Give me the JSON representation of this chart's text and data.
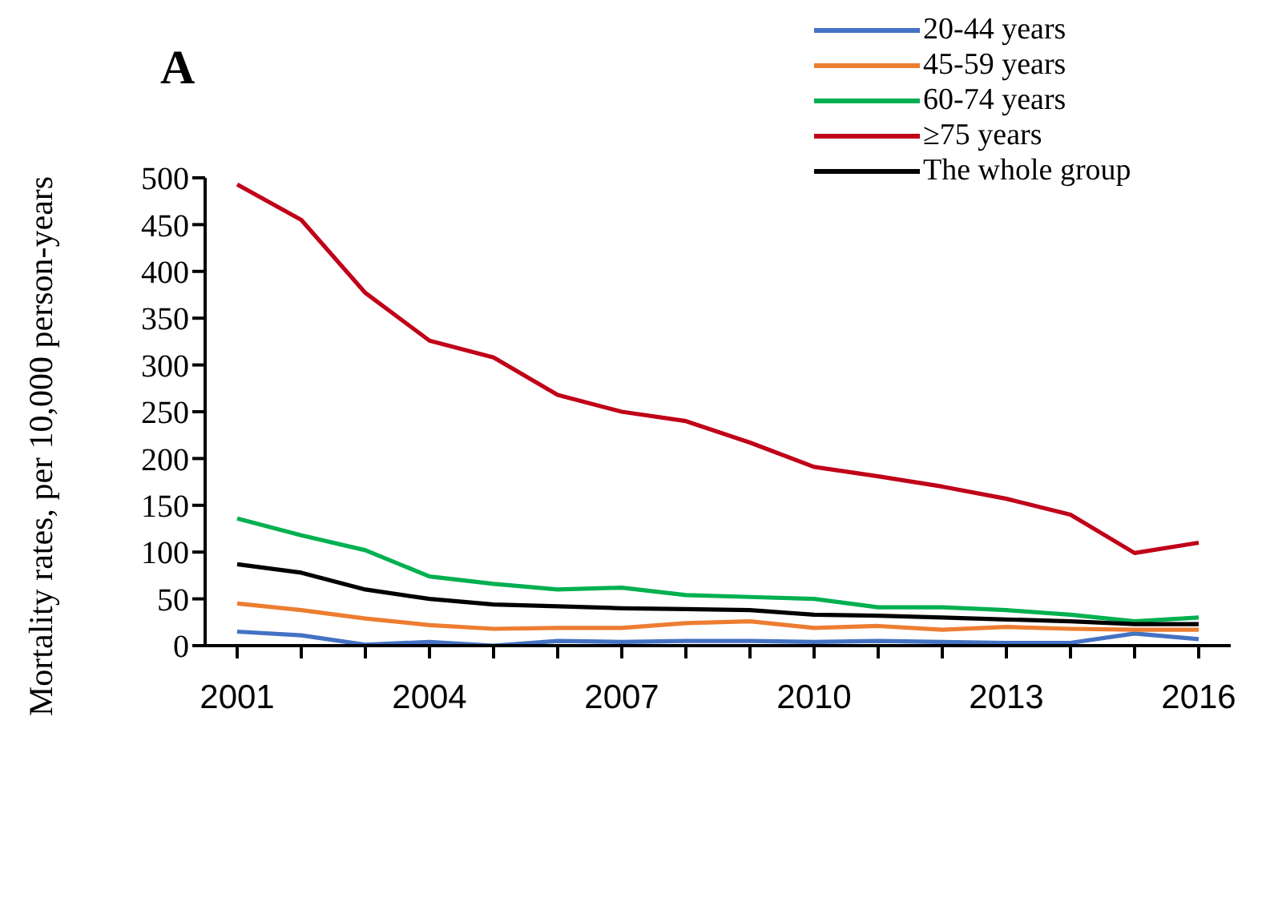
{
  "chart_data": {
    "type": "line",
    "title": "A",
    "ylabel": "Mortality rates, per 10,000 person-years",
    "x": [
      2001,
      2002,
      2003,
      2004,
      2005,
      2006,
      2007,
      2008,
      2009,
      2010,
      2011,
      2012,
      2013,
      2014,
      2015,
      2016
    ],
    "xlim": [
      2000.5,
      2016.5
    ],
    "xticks": [
      2001,
      {
        "value": 2002,
        "label": null
      },
      {
        "value": 2003,
        "label": null
      },
      2004,
      {
        "value": 2005,
        "label": null
      },
      {
        "value": 2006,
        "label": null
      },
      2007,
      {
        "value": 2008,
        "label": null
      },
      {
        "value": 2009,
        "label": null
      },
      2010,
      {
        "value": 2011,
        "label": null
      },
      {
        "value": 2012,
        "label": null
      },
      2013,
      {
        "value": 2014,
        "label": null
      },
      {
        "value": 2015,
        "label": null
      },
      2016
    ],
    "ylim": [
      0,
      500
    ],
    "yticks": [
      0,
      50,
      100,
      150,
      200,
      250,
      300,
      350,
      400,
      450,
      500
    ],
    "legend": "top right",
    "grid": false,
    "series": [
      {
        "name": "20-44 years",
        "color": "#4472c4",
        "values": [
          15,
          11,
          1,
          4,
          0,
          5,
          4,
          5,
          5,
          4,
          5,
          4,
          3,
          3,
          13,
          7
        ]
      },
      {
        "name": "45-59 years",
        "color": "#ed7d31",
        "values": [
          45,
          38,
          29,
          22,
          18,
          19,
          19,
          24,
          26,
          19,
          21,
          17,
          20,
          18,
          17,
          17
        ]
      },
      {
        "name": "60-74 years",
        "color": "#00b050",
        "values": [
          136,
          118,
          102,
          74,
          66,
          60,
          62,
          54,
          52,
          50,
          41,
          41,
          38,
          33,
          26,
          30
        ]
      },
      {
        "name": "≥75 years",
        "color": "#c00018",
        "values": [
          493,
          455,
          377,
          326,
          308,
          268,
          250,
          240,
          217,
          191,
          181,
          170,
          157,
          140,
          99,
          110
        ]
      },
      {
        "name": "The whole group",
        "color": "#000000",
        "values": [
          87,
          78,
          60,
          50,
          44,
          42,
          40,
          39,
          38,
          33,
          32,
          30,
          28,
          26,
          23,
          23
        ]
      }
    ]
  }
}
